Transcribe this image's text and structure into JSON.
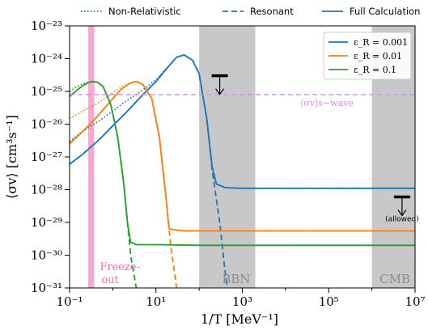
{
  "chart_data": {
    "type": "line",
    "xlabel": "1/T [MeV⁻¹]",
    "ylabel": "⟨σv⟩ [cm³s⁻¹]",
    "xscale": "log",
    "yscale": "log",
    "xlim": [
      0.1,
      10000000
    ],
    "ylim": [
      1e-31,
      1e-23
    ],
    "x_ticks": [
      "10⁻¹",
      "10¹",
      "10³",
      "10⁵",
      "10⁷"
    ],
    "y_ticks": [
      "10⁻²³",
      "10⁻²⁴",
      "10⁻²⁵",
      "10⁻²⁶",
      "10⁻²⁷",
      "10⁻²⁸",
      "10⁻²⁹",
      "10⁻³⁰",
      "10⁻³¹"
    ],
    "style_legend": [
      {
        "label": "Non-Relativistic",
        "dash": "dotted"
      },
      {
        "label": "Resonant",
        "dash": "dashed"
      },
      {
        "label": "Full Calculation",
        "dash": "solid"
      }
    ],
    "legend_position": "top-right",
    "series": [
      {
        "name": "ε_R = 0.001",
        "color": "#1f77b4",
        "full": [
          [
            0.1,
            6e-28
          ],
          [
            0.2,
            1.2e-27
          ],
          [
            0.5,
            3.5e-27
          ],
          [
            1,
            9e-27
          ],
          [
            2,
            2.2e-26
          ],
          [
            5,
            8e-26
          ],
          [
            10,
            2e-25
          ],
          [
            20,
            6e-25
          ],
          [
            30,
            1.1e-24
          ],
          [
            45,
            1.3e-24
          ],
          [
            70,
            9e-25
          ],
          [
            100,
            3.5e-25
          ],
          [
            150,
            1.5e-26
          ],
          [
            200,
            5e-28
          ],
          [
            250,
            1.5e-28
          ],
          [
            400,
            1.15e-28
          ],
          [
            1000,
            1.1e-28
          ],
          [
            10000000,
            1.1e-28
          ]
        ],
        "resonant": [
          [
            0.1,
            6e-28
          ],
          [
            0.2,
            1.2e-27
          ],
          [
            0.5,
            3.5e-27
          ],
          [
            1,
            9e-27
          ],
          [
            2,
            2.2e-26
          ],
          [
            5,
            8e-26
          ],
          [
            10,
            2e-25
          ],
          [
            20,
            6e-25
          ],
          [
            30,
            1.1e-24
          ],
          [
            45,
            1.3e-24
          ],
          [
            70,
            9e-25
          ],
          [
            100,
            3.5e-25
          ],
          [
            150,
            1.5e-26
          ],
          [
            200,
            4e-28
          ],
          [
            300,
            1e-29
          ],
          [
            400,
            3e-31
          ],
          [
            450,
            1e-31
          ]
        ],
        "nonrel": [
          [
            0.1,
            3e-27
          ],
          [
            0.2,
            6e-27
          ],
          [
            0.5,
            1.3e-26
          ],
          [
            1,
            2.5e-26
          ],
          [
            2,
            5e-26
          ],
          [
            5,
            1.1e-25
          ],
          [
            10,
            2.3e-25
          ],
          [
            20,
            6e-25
          ],
          [
            30,
            1.1e-24
          ],
          [
            45,
            1.3e-24
          ],
          [
            70,
            9e-25
          ],
          [
            100,
            3.5e-25
          ],
          [
            150,
            1.5e-26
          ],
          [
            200,
            5e-28
          ],
          [
            250,
            1.5e-28
          ],
          [
            400,
            1.15e-28
          ],
          [
            1000,
            1.1e-28
          ],
          [
            10000000,
            1.1e-28
          ]
        ]
      },
      {
        "name": "ε_R = 0.01",
        "color": "#ff7f0e",
        "full": [
          [
            0.1,
            2.5e-27
          ],
          [
            0.2,
            6e-27
          ],
          [
            0.4,
            1.5e-26
          ],
          [
            0.7,
            3.5e-26
          ],
          [
            1,
            6e-26
          ],
          [
            1.5,
            1.1e-25
          ],
          [
            2.5,
            1.8e-25
          ],
          [
            3.5,
            2e-25
          ],
          [
            5,
            1.6e-25
          ],
          [
            8,
            6e-26
          ],
          [
            12,
            4e-27
          ],
          [
            17,
            6e-29
          ],
          [
            20,
            6.5e-30
          ],
          [
            25,
            6e-30
          ],
          [
            50,
            5.5e-30
          ],
          [
            10000000,
            5.5e-30
          ]
        ],
        "resonant": [
          [
            0.1,
            2.5e-27
          ],
          [
            0.2,
            6e-27
          ],
          [
            0.4,
            1.5e-26
          ],
          [
            0.7,
            3.5e-26
          ],
          [
            1,
            6e-26
          ],
          [
            1.5,
            1.1e-25
          ],
          [
            2.5,
            1.8e-25
          ],
          [
            3.5,
            2e-25
          ],
          [
            5,
            1.6e-25
          ],
          [
            8,
            6e-26
          ],
          [
            12,
            4e-27
          ],
          [
            17,
            6e-29
          ],
          [
            22,
            2e-30
          ],
          [
            30,
            1e-31
          ]
        ],
        "nonrel": [
          [
            0.1,
            1.5e-26
          ],
          [
            0.2,
            2.5e-26
          ],
          [
            0.4,
            4e-26
          ],
          [
            0.7,
            6.5e-26
          ],
          [
            1,
            9e-26
          ],
          [
            1.5,
            1.3e-25
          ],
          [
            2.5,
            1.8e-25
          ],
          [
            3.5,
            2e-25
          ],
          [
            5,
            1.6e-25
          ],
          [
            8,
            6e-26
          ],
          [
            12,
            4e-27
          ],
          [
            17,
            6e-29
          ],
          [
            20,
            6.5e-30
          ],
          [
            25,
            6e-30
          ],
          [
            50,
            5.5e-30
          ],
          [
            10000000,
            5.5e-30
          ]
        ]
      },
      {
        "name": "ε_R = 0.1",
        "color": "#2ca02c",
        "full": [
          [
            0.1,
            7e-26
          ],
          [
            0.15,
            1.1e-25
          ],
          [
            0.2,
            1.5e-25
          ],
          [
            0.3,
            1.95e-25
          ],
          [
            0.35,
            2e-25
          ],
          [
            0.45,
            1.9e-25
          ],
          [
            0.6,
            1.4e-25
          ],
          [
            0.9,
            4e-26
          ],
          [
            1.3,
            4e-27
          ],
          [
            1.8,
            1.5e-28
          ],
          [
            2.2,
            9e-30
          ],
          [
            2.6,
            2.5e-30
          ],
          [
            3.5,
            2.1e-30
          ],
          [
            10,
            2.1e-30
          ],
          [
            100,
            2e-30
          ],
          [
            10000000,
            2e-30
          ]
        ],
        "resonant": [
          [
            0.1,
            7e-26
          ],
          [
            0.15,
            1.1e-25
          ],
          [
            0.2,
            1.5e-25
          ],
          [
            0.3,
            1.95e-25
          ],
          [
            0.35,
            2e-25
          ],
          [
            0.45,
            1.9e-25
          ],
          [
            0.6,
            1.4e-25
          ],
          [
            0.9,
            4e-26
          ],
          [
            1.3,
            4e-27
          ],
          [
            1.8,
            1.5e-28
          ],
          [
            2.2,
            9e-30
          ],
          [
            2.6,
            1e-30
          ],
          [
            3.5,
            1e-31
          ]
        ],
        "nonrel": [
          [
            0.1,
            1e-25
          ],
          [
            0.15,
            1.4e-25
          ],
          [
            0.2,
            1.7e-25
          ],
          [
            0.3,
            2e-25
          ],
          [
            0.35,
            2.05e-25
          ],
          [
            0.45,
            1.9e-25
          ],
          [
            0.6,
            1.4e-25
          ],
          [
            0.9,
            4e-26
          ],
          [
            1.3,
            4e-27
          ],
          [
            1.8,
            1.5e-28
          ],
          [
            2.2,
            9e-30
          ],
          [
            2.6,
            2.5e-30
          ],
          [
            3.5,
            2.1e-30
          ],
          [
            10,
            2.1e-30
          ],
          [
            100,
            2e-30
          ],
          [
            10000000,
            2e-30
          ]
        ]
      }
    ],
    "swave": {
      "value": 8e-26,
      "label": "⟨σv⟩s−wave",
      "color": "#cf8fe6"
    },
    "freezeout": {
      "x_range": [
        0.27,
        0.37
      ],
      "label_line1": "Freeze-",
      "label_line2": "out",
      "color": "#ff69b4"
    },
    "shaded": [
      {
        "x_range": [
          100,
          2000
        ],
        "label": "BBN"
      },
      {
        "x_range": [
          1000000,
          10000000
        ],
        "label": "CMB"
      }
    ],
    "limits": [
      {
        "x": 300,
        "y": 3e-25,
        "note": ""
      },
      {
        "x": 5000000,
        "y": 6e-29,
        "note": "(allowed)"
      }
    ]
  }
}
